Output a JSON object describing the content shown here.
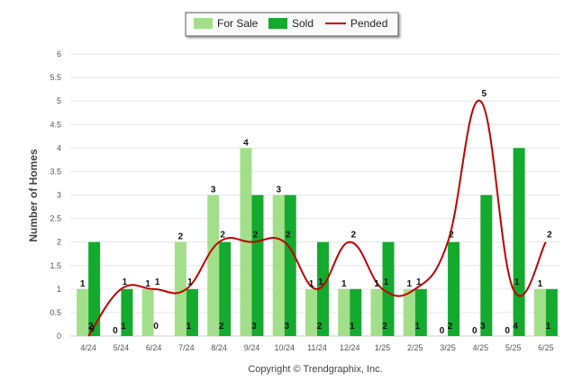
{
  "chart_data": {
    "type": "bar",
    "ylabel": "Number of Homes",
    "ylim": [
      0,
      6
    ],
    "yticks": [
      "0",
      "0.5",
      "1",
      "1.5",
      "2",
      "2.5",
      "3",
      "3.5",
      "4",
      "4.5",
      "5",
      "5.5",
      "6"
    ],
    "categories": [
      "4/24",
      "5/24",
      "6/24",
      "7/24",
      "8/24",
      "9/24",
      "10/24",
      "11/24",
      "12/24",
      "1/25",
      "2/25",
      "3/25",
      "4/25",
      "5/25",
      "6/25"
    ],
    "series": [
      {
        "name": "For Sale",
        "type": "bar",
        "color": "#a3df8a",
        "values": [
          1,
          0,
          1,
          2,
          3,
          4,
          3,
          1,
          1,
          1,
          1,
          0,
          0,
          0,
          1
        ]
      },
      {
        "name": "Sold",
        "type": "bar",
        "color": "#14aa2e",
        "values": [
          2,
          1,
          0,
          1,
          2,
          3,
          3,
          2,
          1,
          2,
          1,
          2,
          3,
          4,
          1
        ]
      },
      {
        "name": "Pended",
        "type": "line",
        "color": "#c00000",
        "values": [
          0,
          1,
          1,
          1,
          2,
          2,
          2,
          1,
          2,
          1,
          1,
          2,
          5,
          1,
          2
        ]
      }
    ],
    "grid": true,
    "legend_position": "top-center"
  },
  "footer": {
    "copyright": "Copyright © Trendgraphix, Inc."
  }
}
